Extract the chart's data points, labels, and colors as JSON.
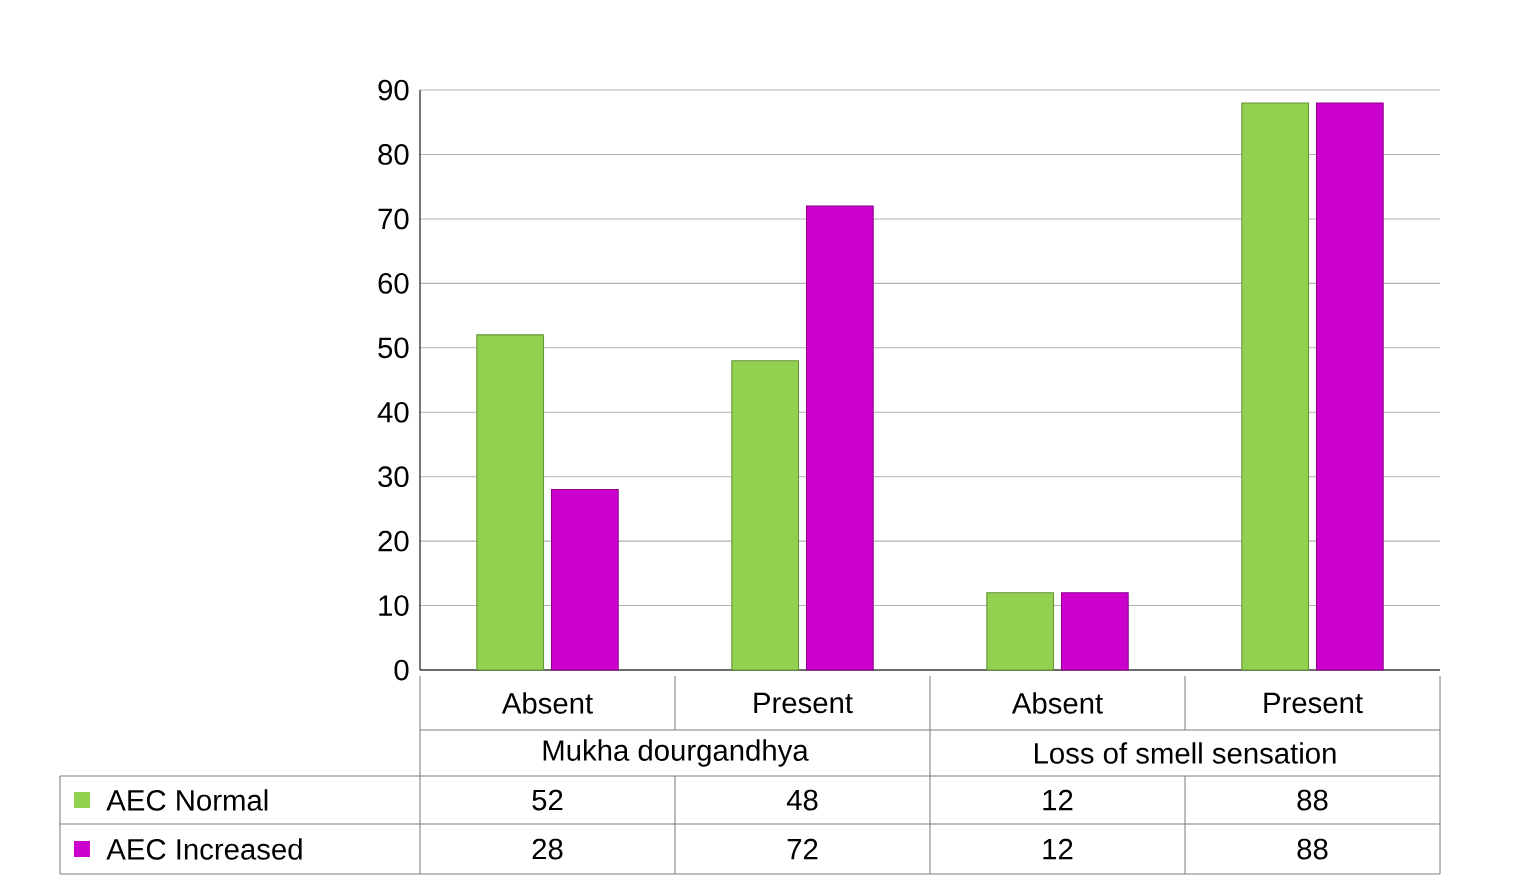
{
  "chart_data": {
    "type": "bar",
    "categories": [
      "Absent",
      "Present",
      "Absent",
      "Present"
    ],
    "annotations": [
      "Mukha dourgandhya",
      "Loss of smell sensation"
    ],
    "series": [
      {
        "name": "AEC  Normal",
        "color": "#92d050",
        "values": [
          52,
          48,
          12,
          88
        ]
      },
      {
        "name": "AEC  Increased",
        "color": "#cc00cc",
        "values": [
          28,
          72,
          12,
          88
        ]
      }
    ],
    "ylim": [
      0,
      90
    ],
    "yticks": [
      0,
      10,
      20,
      30,
      40,
      50,
      60,
      70,
      80,
      90
    ],
    "grid": "y",
    "legend": "bottom",
    "data_labels": true
  }
}
